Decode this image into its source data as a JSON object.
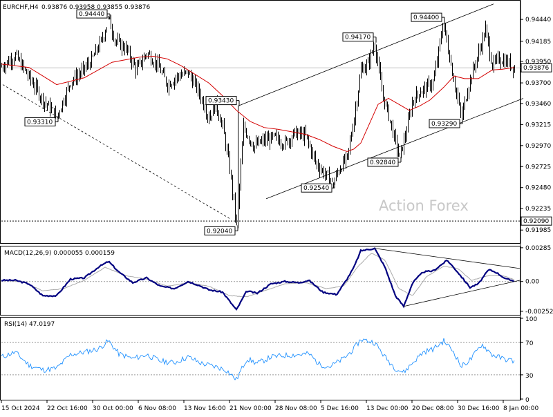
{
  "chart_data": [
    {
      "type": "candlestick",
      "title": "EURCHF,H4",
      "ohlc_header": {
        "open": "0.93876",
        "high": "0.93958",
        "low": "0.93855",
        "close": "0.93876"
      },
      "price_axis": {
        "ylim": [
          0.9185,
          0.9465
        ],
        "ticks": [
          "0.94440",
          "0.94185",
          "0.93950",
          "0.93700",
          "0.93460",
          "0.93215",
          "0.92970",
          "0.92725",
          "0.92480",
          "0.92235",
          "0.91985"
        ]
      },
      "current_price": {
        "label": "0.93876",
        "value": 0.93876
      },
      "horizontal_level": {
        "label": "0.92090",
        "value": 0.9209
      },
      "swing_labels": [
        {
          "label": "0.94440",
          "t": 155,
          "value": 0.9444,
          "side": "left"
        },
        {
          "label": "0.93310",
          "t": 80,
          "value": 0.9331,
          "side": "left"
        },
        {
          "label": "0.93430",
          "t": 342,
          "value": 0.9343,
          "side": "left"
        },
        {
          "label": "0.92040",
          "t": 340,
          "value": 0.9204,
          "side": "left"
        },
        {
          "label": "0.92540",
          "t": 480,
          "value": 0.9254,
          "side": "left"
        },
        {
          "label": "0.94170",
          "t": 540,
          "value": 0.9417,
          "side": "left"
        },
        {
          "label": "0.92840",
          "t": 576,
          "value": 0.9284,
          "side": "left"
        },
        {
          "label": "0.94400",
          "t": 639,
          "value": 0.944,
          "side": "left"
        },
        {
          "label": "0.93290",
          "t": 665,
          "value": 0.9329,
          "side": "left"
        }
      ],
      "watermark": "Action Forex",
      "price_path": [
        [
          0,
          0.9389
        ],
        [
          20,
          0.9402
        ],
        [
          40,
          0.9376
        ],
        [
          60,
          0.935
        ],
        [
          80,
          0.9331
        ],
        [
          100,
          0.9372
        ],
        [
          115,
          0.9382
        ],
        [
          130,
          0.9396
        ],
        [
          145,
          0.942
        ],
        [
          155,
          0.9444
        ],
        [
          165,
          0.9418
        ],
        [
          180,
          0.941
        ],
        [
          195,
          0.9385
        ],
        [
          210,
          0.9405
        ],
        [
          225,
          0.9392
        ],
        [
          240,
          0.9368
        ],
        [
          255,
          0.9378
        ],
        [
          270,
          0.9382
        ],
        [
          285,
          0.936
        ],
        [
          300,
          0.933
        ],
        [
          310,
          0.9345
        ],
        [
          320,
          0.9318
        ],
        [
          330,
          0.927
        ],
        [
          340,
          0.9204
        ],
        [
          350,
          0.9318
        ],
        [
          365,
          0.9296
        ],
        [
          380,
          0.9303
        ],
        [
          395,
          0.9306
        ],
        [
          410,
          0.93
        ],
        [
          425,
          0.9312
        ],
        [
          440,
          0.9308
        ],
        [
          455,
          0.9276
        ],
        [
          470,
          0.9262
        ],
        [
          480,
          0.9254
        ],
        [
          490,
          0.9272
        ],
        [
          500,
          0.9282
        ],
        [
          510,
          0.933
        ],
        [
          520,
          0.9385
        ],
        [
          530,
          0.9392
        ],
        [
          540,
          0.9417
        ],
        [
          550,
          0.936
        ],
        [
          560,
          0.9332
        ],
        [
          570,
          0.93
        ],
        [
          576,
          0.9284
        ],
        [
          585,
          0.9312
        ],
        [
          595,
          0.935
        ],
        [
          605,
          0.936
        ],
        [
          615,
          0.9365
        ],
        [
          625,
          0.9372
        ],
        [
          639,
          0.944
        ],
        [
          650,
          0.9392
        ],
        [
          665,
          0.9329
        ],
        [
          675,
          0.9366
        ],
        [
          690,
          0.9405
        ],
        [
          700,
          0.9432
        ],
        [
          710,
          0.939
        ],
        [
          720,
          0.9398
        ],
        [
          730,
          0.9395
        ],
        [
          742,
          0.93876
        ]
      ],
      "ma_path": [
        [
          0,
          0.9392
        ],
        [
          20,
          0.939
        ],
        [
          40,
          0.9388
        ],
        [
          60,
          0.9378
        ],
        [
          80,
          0.9368
        ],
        [
          100,
          0.9372
        ],
        [
          120,
          0.9376
        ],
        [
          140,
          0.9385
        ],
        [
          160,
          0.9394
        ],
        [
          180,
          0.9397
        ],
        [
          200,
          0.94
        ],
        [
          220,
          0.9401
        ],
        [
          240,
          0.9398
        ],
        [
          260,
          0.939
        ],
        [
          280,
          0.938
        ],
        [
          300,
          0.937
        ],
        [
          320,
          0.9355
        ],
        [
          340,
          0.9338
        ],
        [
          360,
          0.9325
        ],
        [
          380,
          0.9318
        ],
        [
          400,
          0.9316
        ],
        [
          420,
          0.9313
        ],
        [
          440,
          0.931
        ],
        [
          460,
          0.9304
        ],
        [
          480,
          0.9296
        ],
        [
          500,
          0.929
        ],
        [
          510,
          0.9293
        ],
        [
          520,
          0.93
        ],
        [
          530,
          0.9318
        ],
        [
          545,
          0.9345
        ],
        [
          560,
          0.9352
        ],
        [
          575,
          0.9345
        ],
        [
          590,
          0.9338
        ],
        [
          605,
          0.9343
        ],
        [
          620,
          0.935
        ],
        [
          640,
          0.9365
        ],
        [
          655,
          0.9378
        ],
        [
          670,
          0.9375
        ],
        [
          690,
          0.9375
        ],
        [
          710,
          0.9385
        ],
        [
          725,
          0.9386
        ],
        [
          742,
          0.9388
        ]
      ],
      "trendlines": [
        {
          "style": "solid",
          "points": [
            [
              342,
              0.9343
            ],
            [
              712,
              0.9462
            ]
          ]
        },
        {
          "style": "solid",
          "points": [
            [
              383,
              0.9235
            ],
            [
              755,
              0.9352
            ]
          ]
        },
        {
          "style": "dashed",
          "points": [
            [
              2,
              0.9368
            ],
            [
              330,
              0.9212
            ]
          ]
        }
      ],
      "x_labels": [
        "15 Oct 2024",
        "22 Oct 16:00",
        "30 Oct 00:00",
        "6 Nov 08:00",
        "13 Nov 16:00",
        "21 Nov 00:00",
        "28 Nov 08:00",
        "5 Dec 16:00",
        "13 Dec 00:00",
        "20 Dec 08:00",
        "30 Dec 16:00",
        "8 Jan 00:00"
      ]
    },
    {
      "type": "line",
      "title": "MACD(12,26,9) 0.000055 0.000159",
      "ylim": [
        -0.0027,
        0.0029
      ],
      "ticks": [
        "0.00285",
        "0.00",
        "-0.002521"
      ],
      "series": [
        {
          "name": "MACD",
          "values": [
            [
              0,
              0.0001
            ],
            [
              20,
              0.0001
            ],
            [
              40,
              -0.0002
            ],
            [
              60,
              -0.0012
            ],
            [
              80,
              -0.0012
            ],
            [
              100,
              0.0002
            ],
            [
              120,
              0.0003
            ],
            [
              140,
              0.0012
            ],
            [
              155,
              0.0017
            ],
            [
              170,
              0.0008
            ],
            [
              190,
              -0.0001
            ],
            [
              210,
              0.0003
            ],
            [
              230,
              -0.0004
            ],
            [
              250,
              -0.0006
            ],
            [
              270,
              0.0
            ],
            [
              285,
              -0.0003
            ],
            [
              300,
              -0.0007
            ],
            [
              320,
              -0.0009
            ],
            [
              340,
              -0.0024
            ],
            [
              355,
              -0.0008
            ],
            [
              370,
              -0.001
            ],
            [
              390,
              -0.0002
            ],
            [
              410,
              0.0
            ],
            [
              430,
              -0.0001
            ],
            [
              445,
              0.0001
            ],
            [
              465,
              -0.0009
            ],
            [
              485,
              -0.0011
            ],
            [
              500,
              0.0002
            ],
            [
              510,
              0.0012
            ],
            [
              520,
              0.0026
            ],
            [
              540,
              0.0028
            ],
            [
              555,
              0.0012
            ],
            [
              570,
              -0.0012
            ],
            [
              582,
              -0.0021
            ],
            [
              595,
              -0.0001
            ],
            [
              610,
              0.0008
            ],
            [
              625,
              0.0009
            ],
            [
              645,
              0.0018
            ],
            [
              660,
              0.0008
            ],
            [
              678,
              -0.0005
            ],
            [
              690,
              -0.0002
            ],
            [
              705,
              0.001
            ],
            [
              715,
              0.0008
            ],
            [
              730,
              0.0002
            ],
            [
              742,
              5.5e-05
            ]
          ]
        },
        {
          "name": "Signal",
          "values": [
            [
              0,
              0.0001
            ],
            [
              30,
              0.0
            ],
            [
              60,
              -0.0008
            ],
            [
              90,
              -0.0006
            ],
            [
              120,
              0.0001
            ],
            [
              150,
              0.0012
            ],
            [
              180,
              0.0005
            ],
            [
              210,
              0.0002
            ],
            [
              240,
              -0.0004
            ],
            [
              270,
              -0.0001
            ],
            [
              300,
              -0.0004
            ],
            [
              330,
              -0.0012
            ],
            [
              355,
              -0.0013
            ],
            [
              380,
              -0.0008
            ],
            [
              410,
              -0.0002
            ],
            [
              440,
              -0.0001
            ],
            [
              470,
              -0.0006
            ],
            [
              495,
              -0.0004
            ],
            [
              515,
              0.0012
            ],
            [
              535,
              0.0024
            ],
            [
              555,
              0.0018
            ],
            [
              575,
              -0.0006
            ],
            [
              595,
              -0.0012
            ],
            [
              615,
              0.0004
            ],
            [
              640,
              0.0013
            ],
            [
              660,
              0.0011
            ],
            [
              680,
              0.0001
            ],
            [
              705,
              0.0005
            ],
            [
              725,
              0.0005
            ],
            [
              742,
              0.000159
            ]
          ]
        }
      ],
      "trendlines": [
        {
          "points": [
            [
              540,
              0.0028
            ],
            [
              750,
              0.0011
            ]
          ]
        },
        {
          "points": [
            [
              582,
              -0.0021
            ],
            [
              750,
              0.0001
            ]
          ]
        }
      ]
    },
    {
      "type": "line",
      "title": "RSI(14) 47.0197",
      "ylim": [
        0,
        100
      ],
      "ticks": [
        "100",
        "70",
        "30",
        "0"
      ],
      "levels": [
        70,
        30
      ],
      "series": [
        {
          "name": "RSI",
          "values": [
            [
              0,
              52
            ],
            [
              20,
              58
            ],
            [
              40,
              42
            ],
            [
              60,
              36
            ],
            [
              80,
              38
            ],
            [
              100,
              55
            ],
            [
              120,
              58
            ],
            [
              140,
              62
            ],
            [
              155,
              72
            ],
            [
              170,
              56
            ],
            [
              190,
              50
            ],
            [
              210,
              55
            ],
            [
              230,
              47
            ],
            [
              250,
              45
            ],
            [
              270,
              52
            ],
            [
              290,
              44
            ],
            [
              310,
              40
            ],
            [
              325,
              36
            ],
            [
              340,
              24
            ],
            [
              355,
              50
            ],
            [
              370,
              44
            ],
            [
              390,
              52
            ],
            [
              410,
              54
            ],
            [
              430,
              55
            ],
            [
              445,
              56
            ],
            [
              460,
              43
            ],
            [
              475,
              40
            ],
            [
              495,
              50
            ],
            [
              510,
              62
            ],
            [
              520,
              74
            ],
            [
              530,
              72
            ],
            [
              540,
              70
            ],
            [
              555,
              52
            ],
            [
              570,
              38
            ],
            [
              582,
              33
            ],
            [
              595,
              45
            ],
            [
              610,
              58
            ],
            [
              625,
              62
            ],
            [
              640,
              72
            ],
            [
              655,
              58
            ],
            [
              665,
              40
            ],
            [
              680,
              50
            ],
            [
              695,
              68
            ],
            [
              710,
              55
            ],
            [
              725,
              50
            ],
            [
              742,
              47.0197
            ]
          ]
        }
      ]
    }
  ]
}
